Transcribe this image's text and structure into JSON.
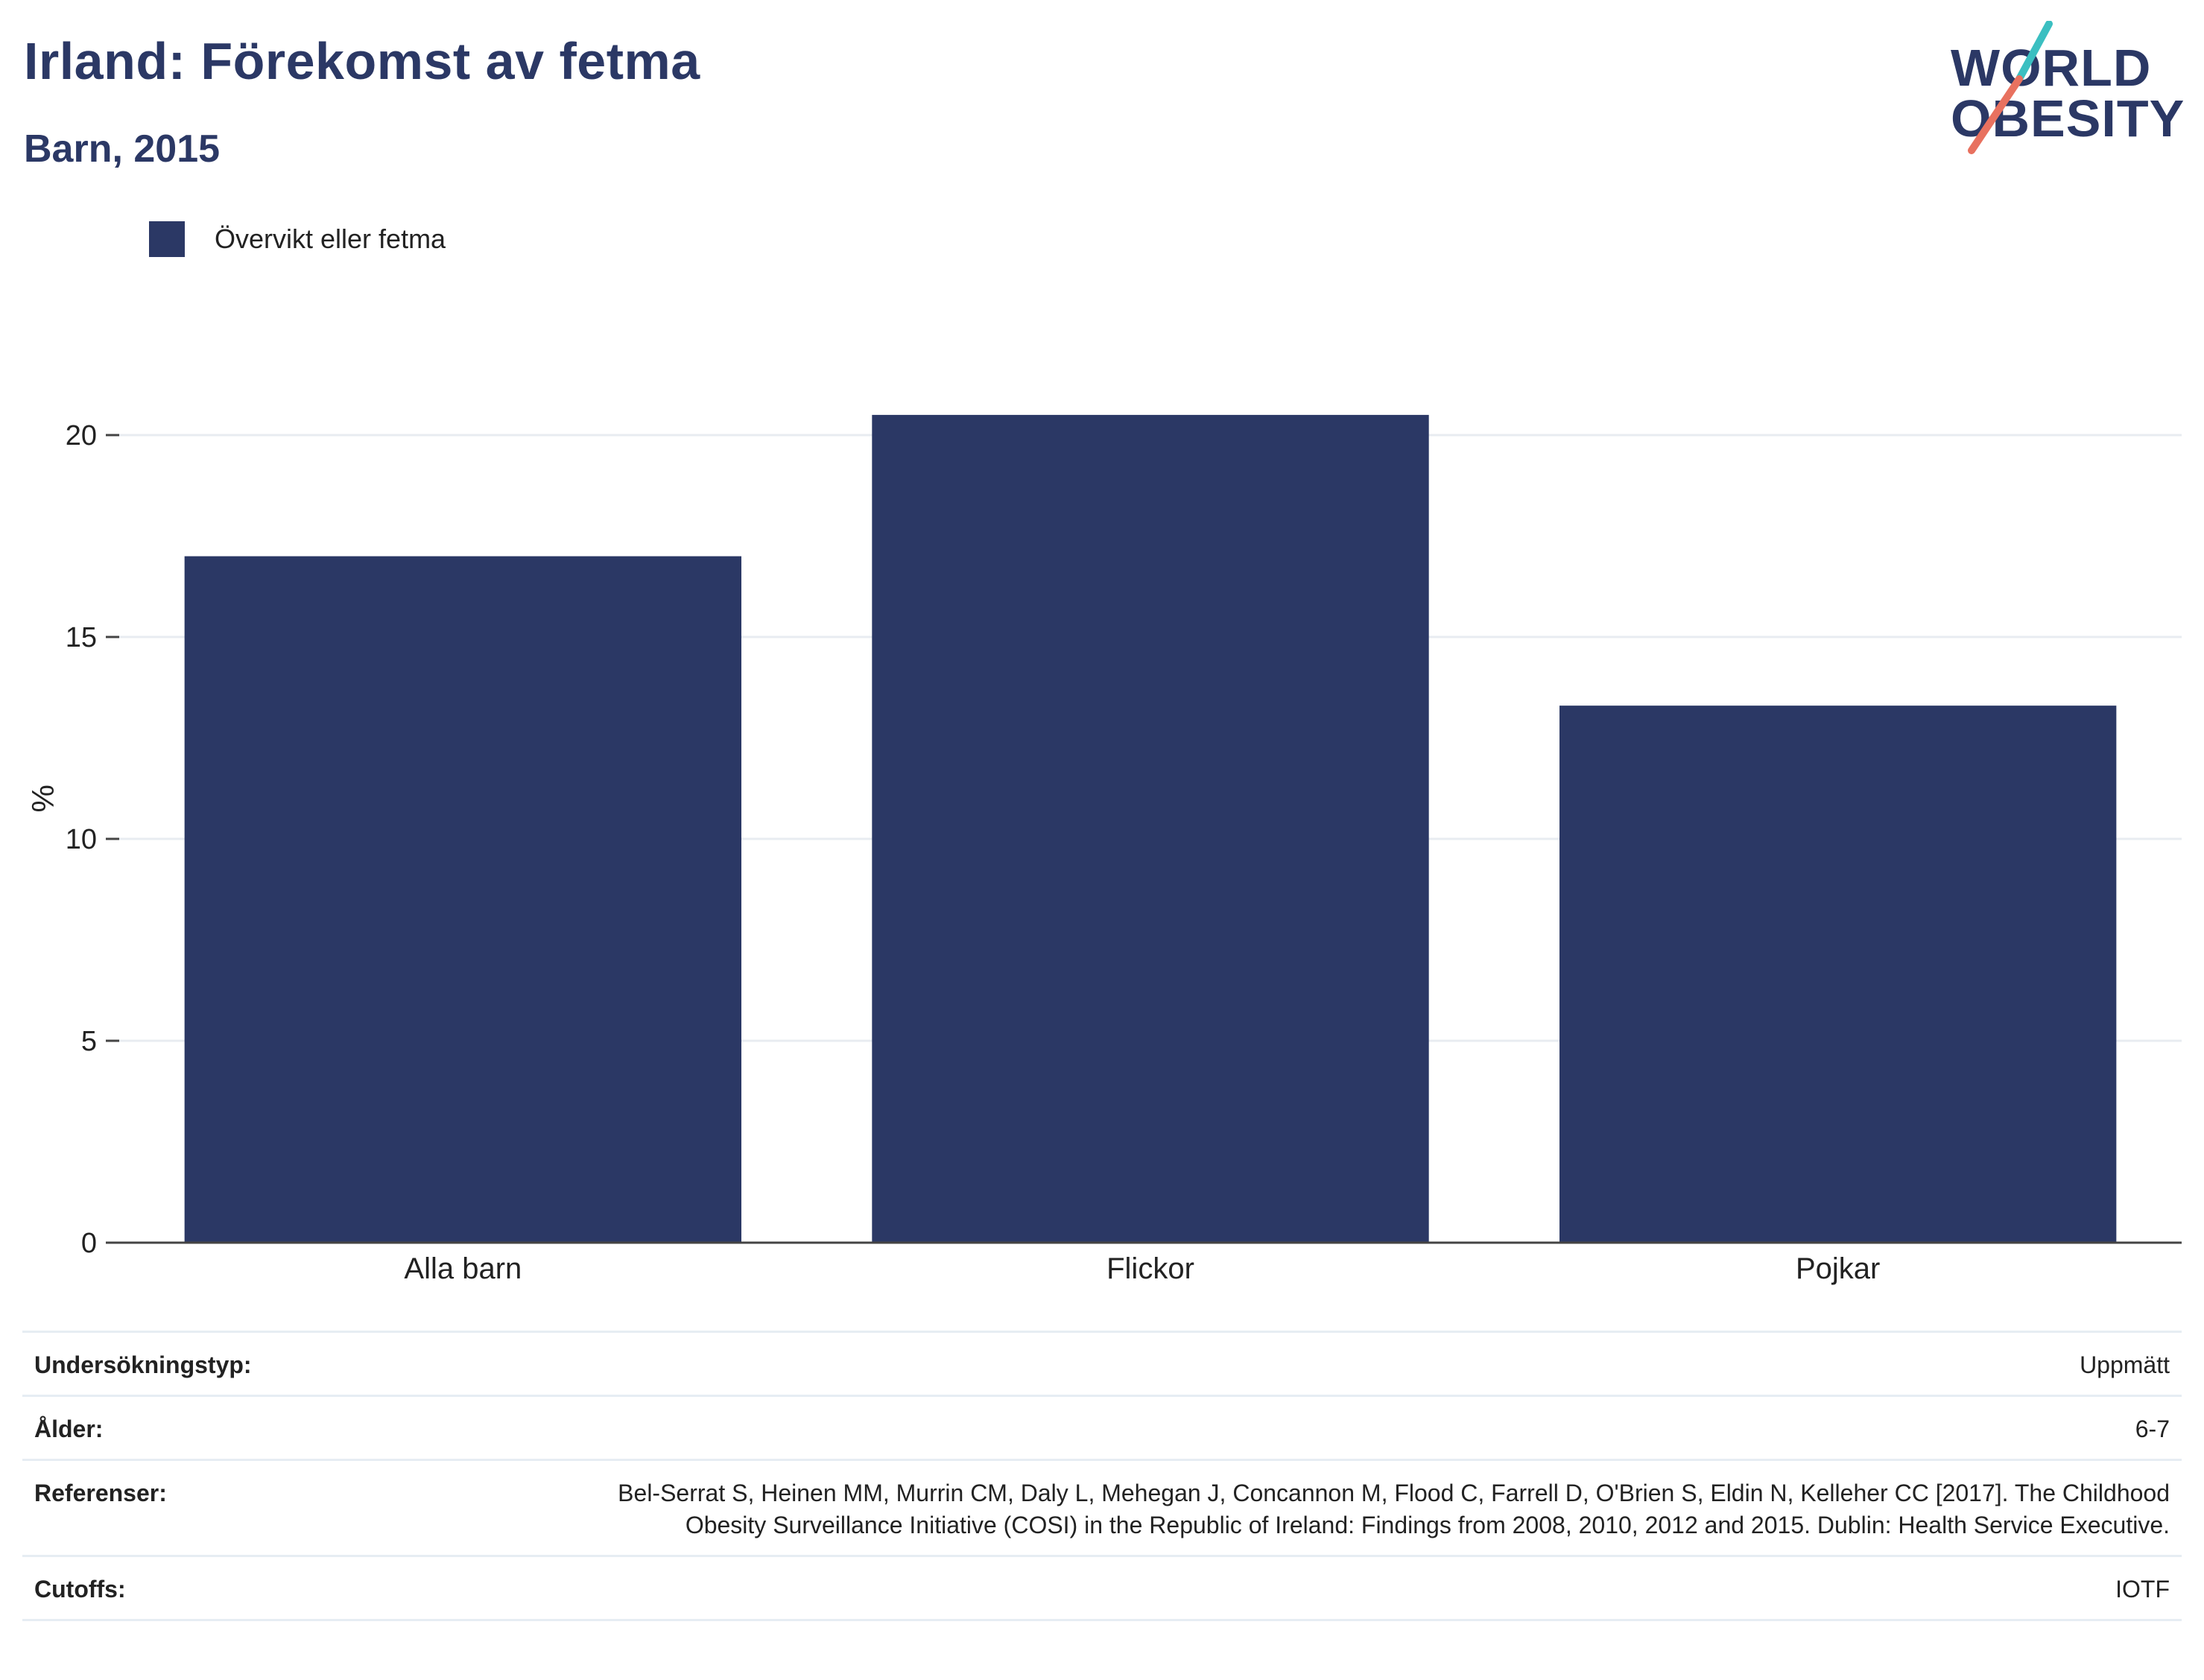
{
  "header": {
    "title": "Irland: Förekomst av fetma",
    "subtitle": "Barn, 2015"
  },
  "logo": {
    "line1": "WORLD",
    "line2": "OBESITY",
    "colors": {
      "text": "#2b3865",
      "slash_top": "#3bbfc1",
      "slash_bottom": "#e8715f"
    }
  },
  "chart_data": {
    "type": "bar",
    "categories": [
      "Alla barn",
      "Flickor",
      "Pojkar"
    ],
    "series": [
      {
        "name": "Övervikt eller fetma",
        "values": [
          17.0,
          20.5,
          13.3
        ],
        "color": "#2b3865"
      }
    ],
    "ylabel": "%",
    "ylim": [
      0,
      22
    ],
    "yticks": [
      0,
      5,
      10,
      15,
      20
    ],
    "grid": true,
    "legend": "top-left"
  },
  "info": {
    "rows": [
      {
        "label": "Undersökningstyp:",
        "value": "Uppmätt"
      },
      {
        "label": "Ålder:",
        "value": "6-7"
      },
      {
        "label": "Referenser:",
        "value": "Bel-Serrat S, Heinen MM, Murrin CM, Daly L, Mehegan J, Concannon M, Flood C, Farrell D, O'Brien S, Eldin N, Kelleher CC [2017]. The Childhood Obesity Surveillance Initiative (COSI) in the Republic of Ireland: Findings from 2008, 2010, 2012 and 2015. Dublin: Health Service Executive."
      },
      {
        "label": "Cutoffs:",
        "value": "IOTF"
      }
    ]
  }
}
